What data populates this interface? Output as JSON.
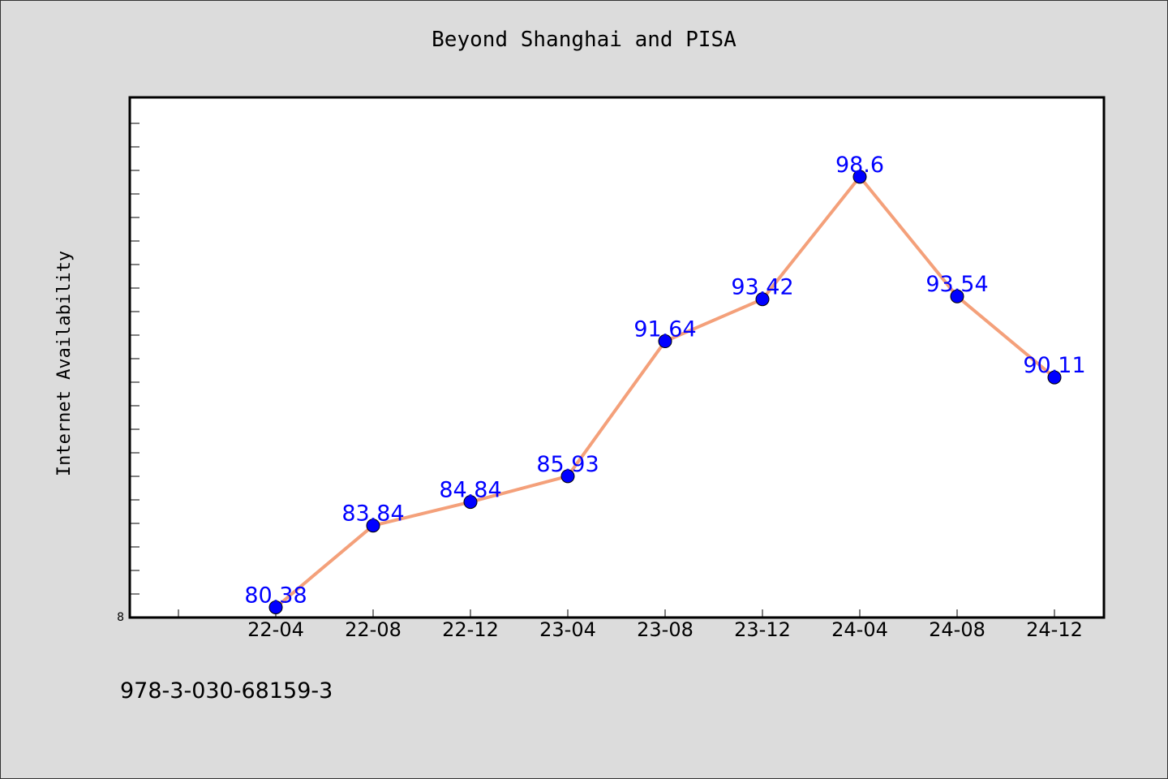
{
  "chart_data": {
    "type": "line",
    "title": "Beyond Shanghai and PISA",
    "xlabel": "",
    "ylabel": "Internet Availability",
    "categories": [
      "22-04",
      "22-08",
      "22-12",
      "23-04",
      "23-08",
      "23-12",
      "24-04",
      "24-08",
      "24-12"
    ],
    "series": [
      {
        "values": [
          80.38,
          83.84,
          84.84,
          85.93,
          91.64,
          93.42,
          98.6,
          93.54,
          90.11
        ],
        "labels": [
          "80.38",
          "83.84",
          "84.84",
          "85.93",
          "91.64",
          "93.42",
          "98.6",
          "93.54",
          "90.11"
        ],
        "line_color": "#f4a07a",
        "marker_color": "#0000ff"
      }
    ],
    "ylim": [
      79.95,
      101.96
    ],
    "y_tick_label": "8",
    "grid": false,
    "legend": "none"
  },
  "footnote": "978-3-030-68159-3",
  "colors": {
    "background": "#dcdcdc",
    "plot_background": "#ffffff",
    "line": "#f4a07a",
    "marker": "#0000ff",
    "data_label": "#0000ff"
  }
}
